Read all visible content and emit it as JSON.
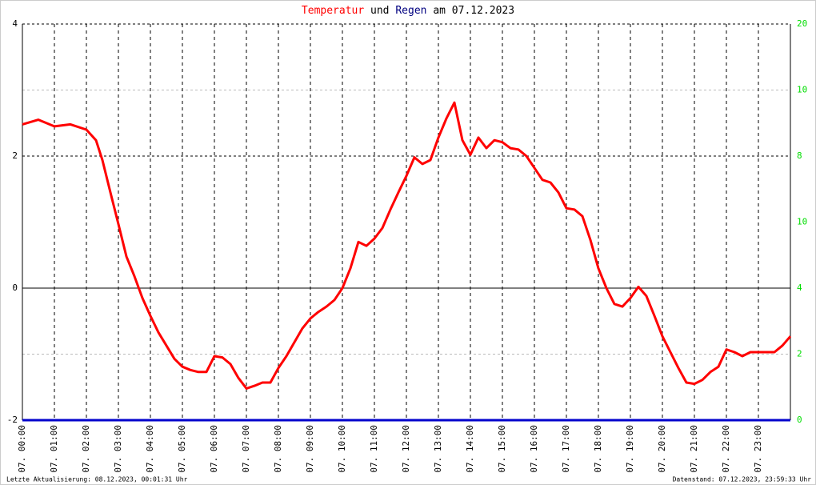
{
  "chart_data": {
    "type": "line",
    "title": {
      "parts": [
        {
          "text": "Temperatur",
          "color": "#ff0000"
        },
        {
          "text": "und",
          "color": "#000000"
        },
        {
          "text": "Regen",
          "color": "#000080"
        },
        {
          "text": "am 07.12.2023",
          "color": "#000000"
        }
      ]
    },
    "xlim": [
      0,
      24
    ],
    "xticks": [
      {
        "value": 0,
        "label": "07. 00:00"
      },
      {
        "value": 1,
        "label": "07. 01:00"
      },
      {
        "value": 2,
        "label": "07. 02:00"
      },
      {
        "value": 3,
        "label": "07. 03:00"
      },
      {
        "value": 4,
        "label": "07. 04:00"
      },
      {
        "value": 5,
        "label": "07. 05:00"
      },
      {
        "value": 6,
        "label": "07. 06:00"
      },
      {
        "value": 7,
        "label": "07. 07:00"
      },
      {
        "value": 8,
        "label": "07. 08:00"
      },
      {
        "value": 9,
        "label": "07. 09:00"
      },
      {
        "value": 10,
        "label": "07. 10:00"
      },
      {
        "value": 11,
        "label": "07. 11:00"
      },
      {
        "value": 12,
        "label": "07. 12:00"
      },
      {
        "value": 13,
        "label": "07. 13:00"
      },
      {
        "value": 14,
        "label": "07. 14:00"
      },
      {
        "value": 15,
        "label": "07. 15:00"
      },
      {
        "value": 16,
        "label": "07. 16:00"
      },
      {
        "value": 17,
        "label": "07. 17:00"
      },
      {
        "value": 18,
        "label": "07. 18:00"
      },
      {
        "value": 19,
        "label": "07. 19:00"
      },
      {
        "value": 20,
        "label": "07. 20:00"
      },
      {
        "value": 21,
        "label": "07. 21:00"
      },
      {
        "value": 22,
        "label": "07. 22:00"
      },
      {
        "value": 23,
        "label": "07. 23:00"
      }
    ],
    "ylim": [
      -2,
      4
    ],
    "yticks": [
      -2,
      0,
      2,
      4
    ],
    "y2lim": [
      0,
      12
    ],
    "y2ticks": [
      0,
      2,
      4,
      8,
      10
    ],
    "y3lim": [
      0,
      20
    ],
    "y3ticks": [
      10,
      20
    ],
    "y2color": "#00dd00",
    "grid": true,
    "x": [
      0,
      0.5,
      1,
      1.5,
      2,
      2.3,
      2.5,
      2.75,
      3,
      3.25,
      3.5,
      3.75,
      4,
      4.25,
      4.5,
      4.75,
      5,
      5.25,
      5.5,
      5.75,
      6,
      6.25,
      6.5,
      6.75,
      7,
      7.25,
      7.5,
      7.75,
      8,
      8.25,
      8.5,
      8.75,
      9,
      9.25,
      9.5,
      9.75,
      10,
      10.25,
      10.5,
      10.75,
      11,
      11.25,
      11.5,
      11.75,
      12,
      12.25,
      12.5,
      12.75,
      13,
      13.25,
      13.5,
      13.75,
      14,
      14.25,
      14.5,
      14.75,
      15,
      15.25,
      15.5,
      15.75,
      16,
      16.25,
      16.5,
      16.75,
      17,
      17.25,
      17.5,
      17.75,
      18,
      18.25,
      18.5,
      18.75,
      19,
      19.25,
      19.5,
      19.75,
      20,
      20.25,
      20.5,
      20.75,
      21,
      21.25,
      21.5,
      21.75,
      22,
      22.25,
      22.5,
      22.75,
      23,
      23.25,
      23.5,
      23.75,
      24
    ],
    "series": [
      {
        "name": "Temperatur",
        "color": "#ff0000",
        "axis": "y",
        "values": [
          2.48,
          2.55,
          2.45,
          2.48,
          2.4,
          2.24,
          1.94,
          1.45,
          0.97,
          0.48,
          0.18,
          -0.15,
          -0.42,
          -0.67,
          -0.87,
          -1.07,
          -1.19,
          -1.24,
          -1.27,
          -1.27,
          -1.03,
          -1.05,
          -1.15,
          -1.36,
          -1.52,
          -1.48,
          -1.43,
          -1.43,
          -1.21,
          -1.03,
          -0.82,
          -0.61,
          -0.46,
          -0.36,
          -0.28,
          -0.18,
          0,
          0.3,
          0.7,
          0.64,
          0.75,
          0.91,
          1.19,
          1.45,
          1.7,
          1.98,
          1.88,
          1.94,
          2.28,
          2.57,
          2.81,
          2.24,
          2.02,
          2.28,
          2.12,
          2.24,
          2.21,
          2.12,
          2.1,
          2,
          1.82,
          1.64,
          1.6,
          1.45,
          1.21,
          1.19,
          1.09,
          0.73,
          0.3,
          0,
          -0.24,
          -0.28,
          -0.15,
          0.02,
          -0.12,
          -0.42,
          -0.73,
          -0.97,
          -1.21,
          -1.43,
          -1.45,
          -1.39,
          -1.27,
          -1.19,
          -0.93,
          -0.97,
          -1.03,
          -0.97,
          -0.97,
          -0.97,
          -0.97,
          -0.87,
          -0.73
        ]
      }
    ],
    "rain": {
      "name": "Regen",
      "color": "#0000cc",
      "axis": "y2",
      "x": [
        0,
        24
      ],
      "values": [
        0,
        0
      ]
    },
    "footer_left": "Letzte Aktualisierung: 08.12.2023, 00:01:31 Uhr",
    "footer_right": "Datenstand: 07.12.2023, 23:59:33 Uhr"
  }
}
